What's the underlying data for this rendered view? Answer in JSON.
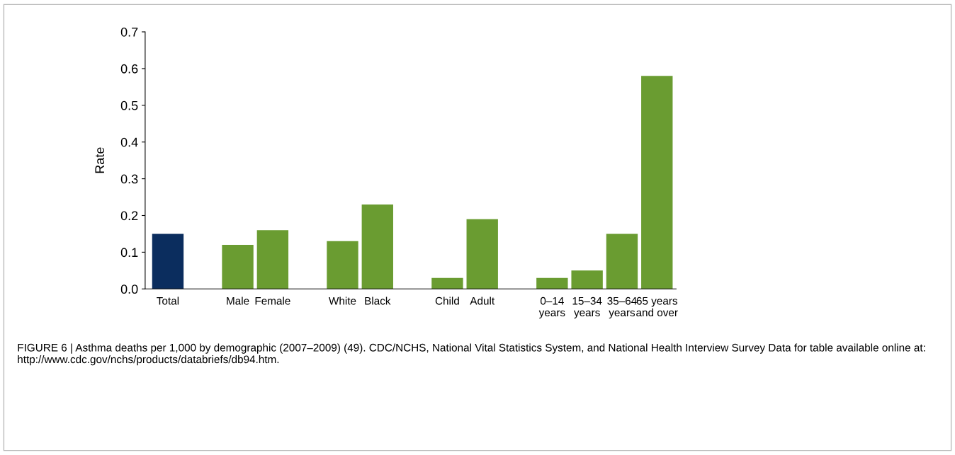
{
  "chart_data": {
    "type": "bar",
    "ylabel": "Rate",
    "categories": [
      "Total",
      null,
      "Male",
      "Female",
      null,
      "White",
      "Black",
      null,
      "Child",
      "Adult",
      null,
      "0–14\nyears",
      "15–34\nyears",
      "35–64\nyears",
      "65 years\nand over"
    ],
    "values": [
      0.15,
      null,
      0.12,
      0.16,
      null,
      0.13,
      0.23,
      null,
      0.03,
      0.19,
      null,
      0.03,
      0.05,
      0.15,
      0.58
    ],
    "colors": [
      "#0b2d5e",
      null,
      "#6a9c31",
      "#6a9c31",
      null,
      "#6a9c31",
      "#6a9c31",
      null,
      "#6a9c31",
      "#6a9c31",
      null,
      "#6a9c31",
      "#6a9c31",
      "#6a9c31",
      "#6a9c31"
    ],
    "ylim": [
      0,
      0.7
    ],
    "yticks": [
      {
        "value": 0,
        "label": "0.0"
      },
      {
        "value": 0.1,
        "label": "0.1"
      },
      {
        "value": 0.2,
        "label": "0.2"
      },
      {
        "value": 0.3,
        "label": "0.3"
      },
      {
        "value": 0.4,
        "label": "0.4"
      },
      {
        "value": 0.5,
        "label": "0.5"
      },
      {
        "value": 0.6,
        "label": "0.6"
      },
      {
        "value": 0.7,
        "label": "0.7"
      }
    ],
    "grid": false,
    "legend": false,
    "annotations": [
      "FIGURE 6 | Asthma deaths per 1,000 by demographic (2007–2009) (49). CDC/NCHS, National Vital Statistics System, and National Health Interview Survey Data for table available online at: http://www.cdc.gov/nchs/products/databriefs/db94.htm."
    ]
  }
}
